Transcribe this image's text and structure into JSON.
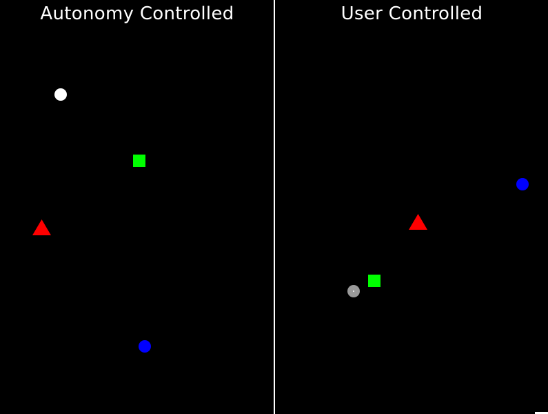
{
  "panels": {
    "left": {
      "title": "Autonomy Controlled"
    },
    "right": {
      "title": "User Controlled"
    }
  },
  "colors": {
    "background": "#000000",
    "divider": "#ffffff",
    "agent": "#ffffff",
    "cursor": "#9a9a9a",
    "square_target": "#00ff00",
    "triangle_target": "#ff0000",
    "circle_target": "#0000ff"
  },
  "icons": {
    "agent": "white-circle",
    "cursor": "gray-ring-cursor",
    "square": "green-square",
    "triangle": "red-triangle",
    "circle": "blue-circle"
  }
}
